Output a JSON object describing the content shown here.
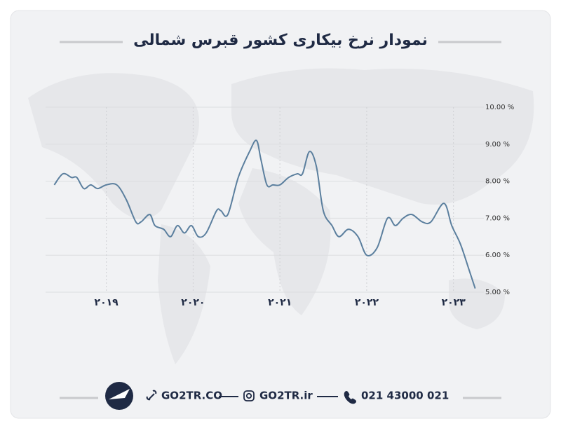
{
  "chart_data": {
    "type": "line",
    "title": "نمودار نرخ بیکاری کشور قبرس شمالی",
    "x": [
      2018.4,
      2018.5,
      2018.6,
      2018.66,
      2018.74,
      2018.82,
      2018.9,
      2019.0,
      2019.12,
      2019.23,
      2019.34,
      2019.4,
      2019.5,
      2019.56,
      2019.66,
      2019.74,
      2019.82,
      2019.9,
      2019.98,
      2020.06,
      2020.15,
      2020.27,
      2020.32,
      2020.4,
      2020.52,
      2020.65,
      2020.73,
      2020.78,
      2020.85,
      2020.92,
      2021.0,
      2021.1,
      2021.2,
      2021.26,
      2021.34,
      2021.42,
      2021.5,
      2021.6,
      2021.68,
      2021.79,
      2021.9,
      2022.0,
      2022.12,
      2022.24,
      2022.33,
      2022.42,
      2022.52,
      2022.64,
      2022.74,
      2022.89,
      2022.98,
      2023.08,
      2023.18,
      2023.25
    ],
    "series": [
      {
        "color": "#5b7f9e",
        "values": [
          7.9,
          8.2,
          8.1,
          8.1,
          7.8,
          7.9,
          7.8,
          7.9,
          7.9,
          7.5,
          6.9,
          6.9,
          7.1,
          6.8,
          6.7,
          6.5,
          6.8,
          6.6,
          6.8,
          6.5,
          6.6,
          7.2,
          7.2,
          7.1,
          8.1,
          8.8,
          9.1,
          8.6,
          7.9,
          7.9,
          7.9,
          8.1,
          8.2,
          8.2,
          8.8,
          8.4,
          7.2,
          6.8,
          6.5,
          6.7,
          6.5,
          6.0,
          6.2,
          7.0,
          6.8,
          7.0,
          7.1,
          6.9,
          6.9,
          7.4,
          6.8,
          6.3,
          5.6,
          5.1
        ]
      }
    ],
    "xlim": [
      2018.3,
      2023.35
    ],
    "xticks": [
      {
        "value": 2019,
        "label": "۲۰۱۹"
      },
      {
        "value": 2020,
        "label": "۲۰۲۰"
      },
      {
        "value": 2021,
        "label": "۲۰۲۱"
      },
      {
        "value": 2022,
        "label": "۲۰۲۲"
      },
      {
        "value": 2023,
        "label": "۲۰۲۳"
      }
    ],
    "ylim": [
      5,
      10
    ],
    "yticks": [
      {
        "value": 5,
        "label": "5.00 %"
      },
      {
        "value": 6,
        "label": "6.00 %"
      },
      {
        "value": 7,
        "label": "7.00 %"
      },
      {
        "value": 8,
        "label": "8.00 %"
      },
      {
        "value": 9,
        "label": "9.00 %"
      },
      {
        "value": 10,
        "label": "10.00 %"
      }
    ],
    "grid": true
  },
  "footer": {
    "website": "GO2TR.CO",
    "instagram": "GO2TR.ir",
    "phone": "021 43000 021"
  }
}
